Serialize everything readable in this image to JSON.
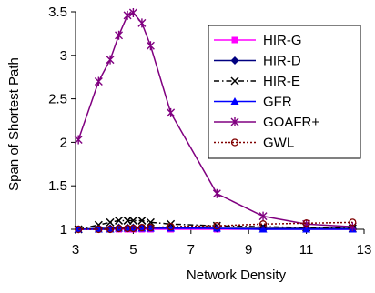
{
  "chart_data": {
    "type": "line",
    "title": "",
    "xlabel": "Network Density",
    "ylabel": "Span of Shortest Path",
    "xlim": [
      3,
      13
    ],
    "ylim": [
      1,
      3.5
    ],
    "xticks": [
      3,
      5,
      7,
      9,
      11,
      13
    ],
    "yticks": [
      1,
      1.5,
      2,
      2.5,
      3,
      3.5
    ],
    "xtick_labels": [
      "3",
      "5",
      "7",
      "9",
      "11",
      "13"
    ],
    "ytick_labels": [
      "1",
      "1.5",
      "2",
      "2.5",
      "3",
      "3.5"
    ],
    "grid": false,
    "legend_position": "top-right",
    "series": [
      {
        "name": "HIR-G",
        "color": "#ff00ff",
        "marker": "square",
        "dash": "solid",
        "x": [
          3.1,
          3.8,
          4.2,
          4.5,
          4.8,
          5.0,
          5.3,
          5.6,
          6.3,
          7.9,
          9.5,
          11.0,
          12.6
        ],
        "y": [
          1.0,
          1.0,
          1.0,
          1.0,
          1.0,
          1.0,
          1.0,
          1.0,
          1.0,
          1.0,
          1.0,
          1.0,
          1.0
        ]
      },
      {
        "name": "HIR-D",
        "color": "#000080",
        "marker": "diamond",
        "dash": "solid",
        "x": [
          3.1,
          3.8,
          4.2,
          4.5,
          4.8,
          5.0,
          5.3,
          5.6,
          6.3,
          7.9,
          9.5,
          11.0,
          12.6
        ],
        "y": [
          1.0,
          1.01,
          1.01,
          1.02,
          1.02,
          1.02,
          1.02,
          1.02,
          1.02,
          1.01,
          1.01,
          1.01,
          1.01
        ]
      },
      {
        "name": "HIR-E",
        "color": "#000000",
        "marker": "x",
        "dash": "dashdot",
        "x": [
          3.1,
          3.8,
          4.2,
          4.5,
          4.8,
          5.0,
          5.3,
          5.6,
          6.3,
          7.9,
          9.5,
          11.0,
          12.6
        ],
        "y": [
          1.0,
          1.05,
          1.08,
          1.1,
          1.1,
          1.1,
          1.1,
          1.08,
          1.06,
          1.04,
          1.03,
          1.02,
          1.01
        ]
      },
      {
        "name": "GFR",
        "color": "#0000ff",
        "marker": "triangle",
        "dash": "solid",
        "x": [
          3.1,
          3.8,
          4.2,
          4.5,
          4.8,
          5.0,
          5.3,
          5.6,
          6.3,
          7.9,
          9.5,
          11.0,
          12.6
        ],
        "y": [
          1.0,
          1.0,
          1.0,
          1.01,
          1.01,
          1.01,
          1.01,
          1.01,
          1.01,
          1.01,
          1.0,
          1.0,
          1.0
        ]
      },
      {
        "name": "GOAFR+",
        "color": "#800080",
        "marker": "star",
        "dash": "solid",
        "x": [
          3.1,
          3.8,
          4.2,
          4.5,
          4.8,
          5.0,
          5.3,
          5.6,
          6.3,
          7.9,
          9.5,
          11.0,
          12.6
        ],
        "y": [
          2.03,
          2.7,
          2.95,
          3.23,
          3.46,
          3.49,
          3.37,
          3.11,
          2.34,
          1.41,
          1.15,
          1.06,
          1.03
        ]
      },
      {
        "name": "GWL",
        "color": "#800000",
        "marker": "circle",
        "dash": "dotted",
        "x": [
          3.1,
          3.8,
          4.2,
          4.5,
          4.8,
          5.0,
          5.3,
          5.6,
          6.3,
          7.9,
          9.5,
          11.0,
          12.6
        ],
        "y": [
          1.0,
          1.0,
          1.0,
          1.01,
          1.01,
          1.01,
          1.02,
          1.02,
          1.03,
          1.04,
          1.06,
          1.07,
          1.08
        ]
      }
    ]
  }
}
